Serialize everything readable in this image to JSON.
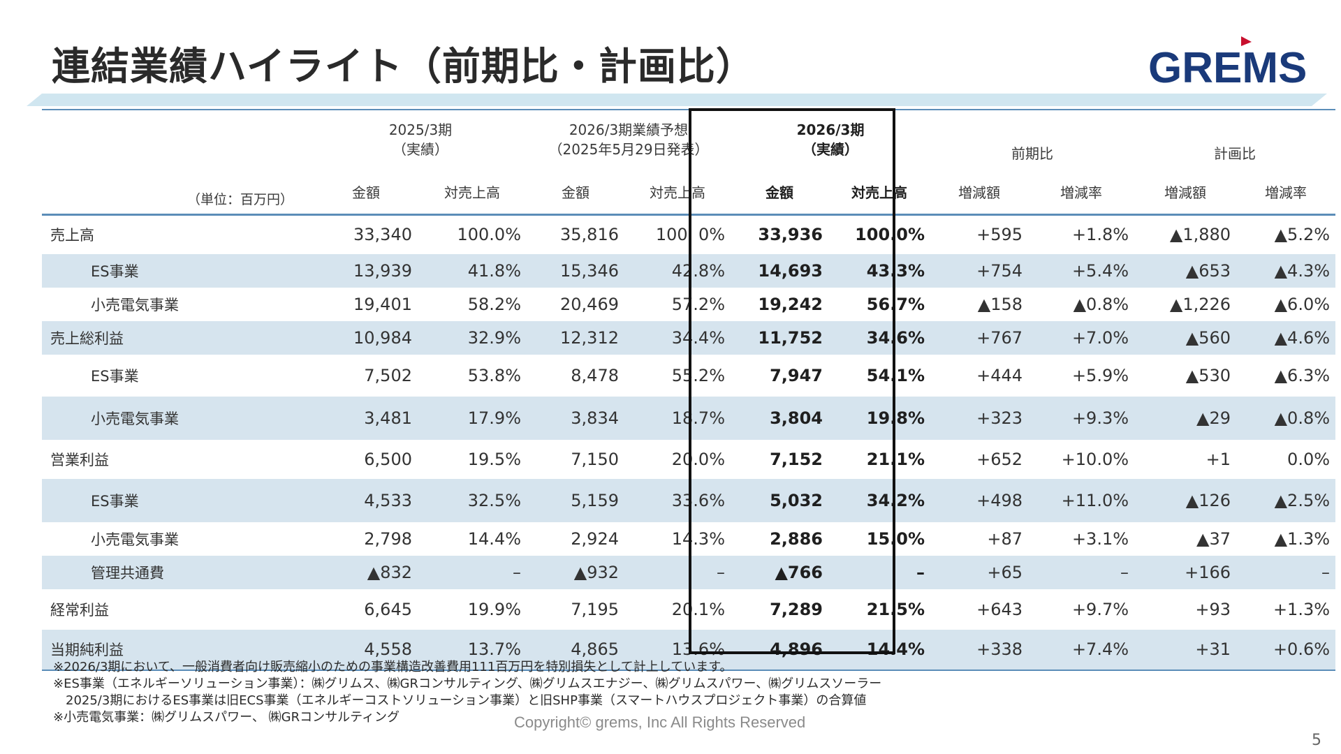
{
  "title": "連結業績ハイライト（前期比・計画比）",
  "logo_text": "GREMS",
  "colors": {
    "brand_navy": "#1a3a7a",
    "brand_red": "#c8102e",
    "row_shade": "#d6e4ee",
    "rule": "#5b8db8"
  },
  "table": {
    "unit": "（単位：百万円）",
    "groups": {
      "fy2025": {
        "line1": "2025/3期",
        "line2": "（実績）"
      },
      "plan": {
        "line1": "2026/3期業績予想",
        "line2": "（2025年5月29日発表）"
      },
      "fy2026": {
        "line1": "2026/3期",
        "line2": "（実績）"
      },
      "yoy": {
        "line1": "前期比"
      },
      "vsplan": {
        "line1": "計画比"
      }
    },
    "subheaders": [
      "金額",
      "対売上高",
      "金額",
      "対売上高",
      "金額",
      "対売上高",
      "増減額",
      "増減率",
      "増減額",
      "増減率"
    ],
    "rows": [
      {
        "label": "売上高",
        "v": [
          "33,340",
          "100.0%",
          "35,816",
          "100. 0%",
          "33,936",
          "100.0%",
          "+595",
          "+1.8%",
          "▲1,880",
          "▲5.2%"
        ]
      },
      {
        "label": "ES事業",
        "v": [
          "13,939",
          "41.8%",
          "15,346",
          "42.8%",
          "14,693",
          "43.3%",
          "+754",
          "+5.4%",
          "▲653",
          "▲4.3%"
        ]
      },
      {
        "label": "小売電気事業",
        "v": [
          "19,401",
          "58.2%",
          "20,469",
          "57.2%",
          "19,242",
          "56.7%",
          "▲158",
          "▲0.8%",
          "▲1,226",
          "▲6.0%"
        ]
      },
      {
        "label": "売上総利益",
        "v": [
          "10,984",
          "32.9%",
          "12,312",
          "34.4%",
          "11,752",
          "34.6%",
          "+767",
          "+7.0%",
          "▲560",
          "▲4.6%"
        ]
      },
      {
        "label": "ES事業",
        "v": [
          "7,502",
          "53.8%",
          "8,478",
          "55.2%",
          "7,947",
          "54.1%",
          "+444",
          "+5.9%",
          "▲530",
          "▲6.3%"
        ]
      },
      {
        "label": "小売電気事業",
        "v": [
          "3,481",
          "17.9%",
          "3,834",
          "18.7%",
          "3,804",
          "19.8%",
          "+323",
          "+9.3%",
          "▲29",
          "▲0.8%"
        ]
      },
      {
        "label": "営業利益",
        "v": [
          "6,500",
          "19.5%",
          "7,150",
          "20.0%",
          "7,152",
          "21.1%",
          "+652",
          "+10.0%",
          "+1",
          "0.0%"
        ]
      },
      {
        "label": "ES事業",
        "v": [
          "4,533",
          "32.5%",
          "5,159",
          "33.6%",
          "5,032",
          "34.2%",
          "+498",
          "+11.0%",
          "▲126",
          "▲2.5%"
        ]
      },
      {
        "label": "小売電気事業",
        "v": [
          "2,798",
          "14.4%",
          "2,924",
          "14.3%",
          "2,886",
          "15.0%",
          "+87",
          "+3.1%",
          "▲37",
          "▲1.3%"
        ]
      },
      {
        "label": "管理共通費",
        "v": [
          "▲832",
          "–",
          "▲932",
          "–",
          "▲766",
          "–",
          "+65",
          "–",
          "+166",
          "–"
        ]
      },
      {
        "label": "経常利益",
        "v": [
          "6,645",
          "19.9%",
          "7,195",
          "20.1%",
          "7,289",
          "21.5%",
          "+643",
          "+9.7%",
          "+93",
          "+1.3%"
        ]
      },
      {
        "label": "当期純利益",
        "v": [
          "4,558",
          "13.7%",
          "4,865",
          "13.6%",
          "4,896",
          "14.4%",
          "+338",
          "+7.4%",
          "+31",
          "+0.6%"
        ]
      }
    ]
  },
  "notes": [
    "※2026/3期において、一般消費者向け販売縮小のための事業構造改善費用111百万円を特別損失として計上しています。",
    "※ES事業（エネルギーソリューション事業）：㈱グリムス、㈱GRコンサルティング、㈱グリムスエナジー、㈱グリムスパワー、㈱グリムスソーラー",
    "　2025/3期におけるES事業は旧ECS事業（エネルギーコストソリューション事業）と旧SHP事業（スマートハウスプロジェクト事業）の合算値",
    "※小売電気事業：㈱グリムスパワー、 ㈱GRコンサルティング"
  ],
  "copyright": "Copyright© grems, Inc All Rights Reserved",
  "page_number": "5"
}
